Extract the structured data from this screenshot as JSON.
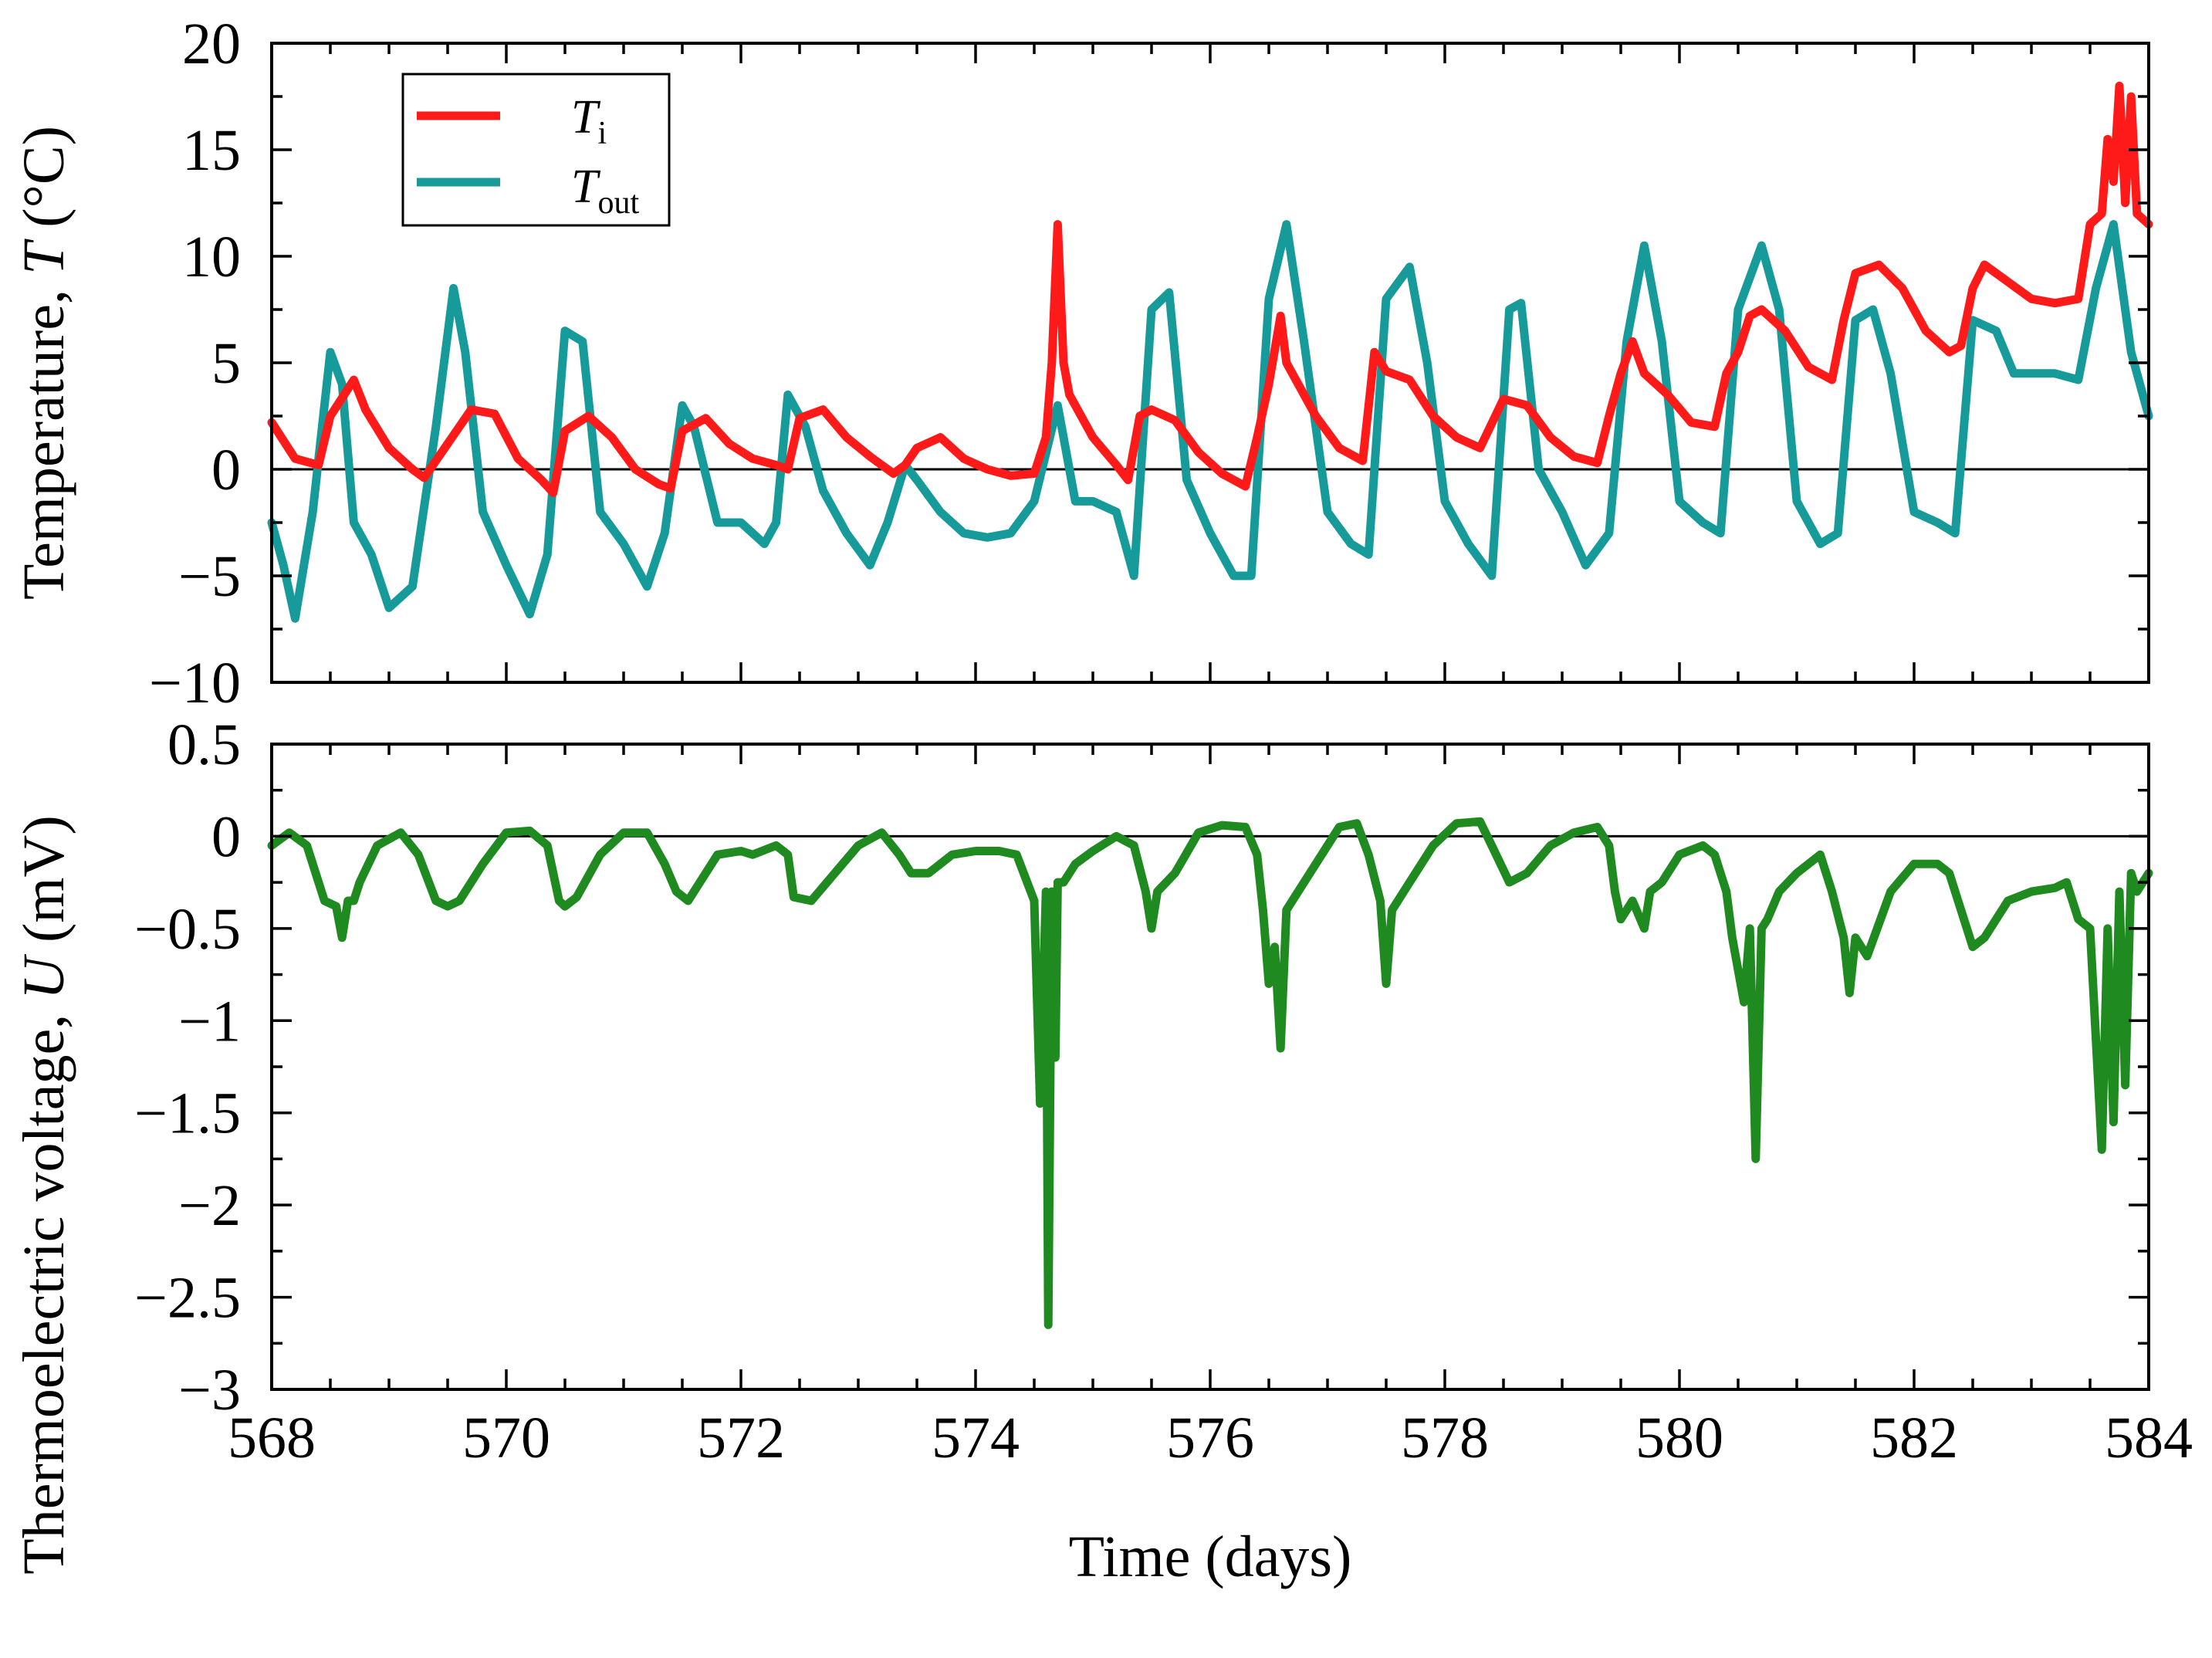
{
  "colors": {
    "ti": "#ff1a1a",
    "tout": "#179a9a",
    "u": "#1f8a1f",
    "axis": "#000000"
  },
  "chart_data": [
    {
      "id": "temperature",
      "type": "line",
      "ylabel_prefix": "Temperature, ",
      "ylabel_var": "T",
      "ylabel_suffix": " (°C)",
      "xlim": [
        568,
        584
      ],
      "ylim": [
        -10,
        20
      ],
      "yticks": [
        -10,
        -5,
        0,
        5,
        10,
        15,
        20
      ],
      "ytick_labels": [
        "−10",
        "−5",
        "0",
        "5",
        "10",
        "15",
        "20"
      ],
      "zero_line": true,
      "legend": {
        "position": "top-left",
        "entries": [
          {
            "symbol": "T",
            "subscript": "i"
          },
          {
            "symbol": "T",
            "subscript": "out"
          }
        ]
      },
      "series": [
        {
          "name": "Ti",
          "color_key": "ti",
          "x": [
            568.0,
            568.2,
            568.4,
            568.5,
            568.7,
            568.8,
            569.0,
            569.2,
            569.3,
            569.5,
            569.7,
            569.9,
            570.1,
            570.3,
            570.4,
            570.5,
            570.7,
            570.9,
            571.1,
            571.3,
            571.4,
            571.5,
            571.7,
            571.9,
            572.1,
            572.3,
            572.4,
            572.5,
            572.7,
            572.9,
            573.1,
            573.3,
            573.4,
            573.5,
            573.7,
            573.9,
            574.1,
            574.3,
            574.5,
            574.6,
            574.65,
            574.7,
            574.75,
            574.8,
            575.0,
            575.2,
            575.3,
            575.4,
            575.5,
            575.7,
            575.9,
            576.1,
            576.3,
            576.4,
            576.5,
            576.6,
            576.65,
            576.7,
            576.9,
            577.1,
            577.3,
            577.4,
            577.5,
            577.7,
            577.9,
            578.1,
            578.3,
            578.5,
            578.7,
            578.9,
            579.1,
            579.3,
            579.4,
            579.5,
            579.6,
            579.7,
            579.9,
            580.1,
            580.3,
            580.4,
            580.5,
            580.6,
            580.7,
            580.9,
            581.1,
            581.3,
            581.4,
            581.5,
            581.7,
            581.9,
            582.1,
            582.3,
            582.4,
            582.5,
            582.6,
            582.8,
            583.0,
            583.2,
            583.4,
            583.5,
            583.6,
            583.65,
            583.7,
            583.75,
            583.8,
            583.85,
            583.9,
            584.0
          ],
          "y": [
            2.2,
            0.5,
            0.2,
            2.5,
            4.2,
            2.8,
            1.0,
            0.0,
            -0.4,
            1.2,
            2.8,
            2.6,
            0.5,
            -0.5,
            -1.1,
            1.8,
            2.5,
            1.5,
            0.0,
            -0.7,
            -0.9,
            1.8,
            2.4,
            1.2,
            0.5,
            0.2,
            0.0,
            2.4,
            2.8,
            1.5,
            0.6,
            -0.2,
            0.2,
            1.0,
            1.5,
            0.5,
            0.0,
            -0.3,
            -0.2,
            1.5,
            5.0,
            11.5,
            5.0,
            3.5,
            1.5,
            0.2,
            -0.5,
            2.5,
            2.8,
            2.3,
            0.8,
            -0.2,
            -0.8,
            1.5,
            4.0,
            7.2,
            5.0,
            4.5,
            2.5,
            1.0,
            0.4,
            5.5,
            4.6,
            4.2,
            2.5,
            1.5,
            1.0,
            3.3,
            3.0,
            1.5,
            0.6,
            0.3,
            2.5,
            4.5,
            6.0,
            4.5,
            3.5,
            2.2,
            2.0,
            4.5,
            5.5,
            7.2,
            7.5,
            6.5,
            4.8,
            4.2,
            7.0,
            9.2,
            9.6,
            8.5,
            6.5,
            5.5,
            5.8,
            8.5,
            9.6,
            8.8,
            8.0,
            7.8,
            8.0,
            11.5,
            12.0,
            15.5,
            13.5,
            18.0,
            12.5,
            17.5,
            12.0,
            11.5
          ]
        },
        {
          "name": "Tout",
          "color_key": "tout",
          "x": [
            568.0,
            568.1,
            568.2,
            568.35,
            568.5,
            568.6,
            568.7,
            568.85,
            569.0,
            569.2,
            569.4,
            569.55,
            569.65,
            569.8,
            570.0,
            570.2,
            570.35,
            570.5,
            570.65,
            570.8,
            571.0,
            571.2,
            571.35,
            571.5,
            571.6,
            571.8,
            572.0,
            572.2,
            572.3,
            572.4,
            572.55,
            572.7,
            572.9,
            573.1,
            573.25,
            573.4,
            573.5,
            573.7,
            573.9,
            574.1,
            574.3,
            574.5,
            574.7,
            574.85,
            575.0,
            575.2,
            575.35,
            575.5,
            575.65,
            575.8,
            576.0,
            576.2,
            576.35,
            576.5,
            576.65,
            576.8,
            577.0,
            577.2,
            577.35,
            577.5,
            577.7,
            577.85,
            578.0,
            578.2,
            578.4,
            578.55,
            578.65,
            578.8,
            579.0,
            579.2,
            579.4,
            579.55,
            579.7,
            579.85,
            580.0,
            580.2,
            580.35,
            580.5,
            580.7,
            580.85,
            581.0,
            581.2,
            581.35,
            581.5,
            581.65,
            581.8,
            582.0,
            582.2,
            582.35,
            582.5,
            582.7,
            582.85,
            583.0,
            583.2,
            583.4,
            583.55,
            583.7,
            583.85,
            584.0
          ],
          "y": [
            -2.5,
            -4.5,
            -7.0,
            -2.0,
            5.5,
            4.0,
            -2.5,
            -4.0,
            -6.5,
            -5.5,
            2.0,
            8.5,
            5.5,
            -2.0,
            -4.5,
            -6.8,
            -4.0,
            6.5,
            6.0,
            -2.0,
            -3.5,
            -5.5,
            -3.0,
            3.0,
            2.0,
            -2.5,
            -2.5,
            -3.5,
            -2.5,
            3.5,
            2.0,
            -1.0,
            -3.0,
            -4.5,
            -2.5,
            0.2,
            -0.5,
            -2.0,
            -3.0,
            -3.2,
            -3.0,
            -1.5,
            3.0,
            -1.5,
            -1.5,
            -2.0,
            -5.0,
            7.5,
            8.3,
            -0.5,
            -3.0,
            -5.0,
            -5.0,
            8.0,
            11.5,
            6.0,
            -2.0,
            -3.5,
            -4.0,
            8.0,
            9.5,
            5.0,
            -1.5,
            -3.5,
            -5.0,
            7.5,
            7.8,
            0.0,
            -2.0,
            -4.5,
            -3.0,
            6.0,
            10.5,
            6.0,
            -1.5,
            -2.5,
            -3.0,
            7.5,
            10.5,
            7.5,
            -1.5,
            -3.5,
            -3.0,
            7.0,
            7.5,
            4.5,
            -2.0,
            -2.5,
            -3.0,
            7.0,
            6.5,
            4.5,
            4.5,
            4.5,
            4.2,
            8.5,
            11.5,
            5.5,
            2.5
          ]
        }
      ]
    },
    {
      "id": "voltage",
      "type": "line",
      "ylabel_prefix": "Thermoelectric voltage, ",
      "ylabel_var": "U",
      "ylabel_suffix": " (mV)",
      "xlabel": "Time (days)",
      "xlim": [
        568,
        584
      ],
      "ylim": [
        -3,
        0.5
      ],
      "xticks": [
        568,
        570,
        572,
        574,
        576,
        578,
        580,
        582,
        584
      ],
      "xtick_labels": [
        "568",
        "570",
        "572",
        "574",
        "576",
        "578",
        "580",
        "582",
        "584"
      ],
      "yticks": [
        -3,
        -2.5,
        -2,
        -1.5,
        -1,
        -0.5,
        0,
        0.5
      ],
      "ytick_labels": [
        "−3",
        "−2.5",
        "−2",
        "−1.5",
        "−1",
        "−0.5",
        "0",
        "0.5"
      ],
      "zero_line": true,
      "series": [
        {
          "name": "U",
          "color_key": "u",
          "x": [
            568.0,
            568.15,
            568.3,
            568.45,
            568.55,
            568.6,
            568.65,
            568.7,
            568.75,
            568.9,
            569.1,
            569.25,
            569.4,
            569.5,
            569.6,
            569.8,
            570.0,
            570.2,
            570.35,
            570.45,
            570.5,
            570.6,
            570.8,
            571.0,
            571.2,
            571.35,
            571.45,
            571.55,
            571.8,
            572.0,
            572.1,
            572.3,
            572.4,
            572.45,
            572.6,
            572.8,
            573.0,
            573.2,
            573.35,
            573.45,
            573.6,
            573.8,
            574.0,
            574.2,
            574.35,
            574.5,
            574.55,
            574.6,
            574.62,
            574.65,
            574.68,
            574.7,
            574.75,
            574.85,
            575.0,
            575.2,
            575.35,
            575.45,
            575.5,
            575.55,
            575.7,
            575.9,
            576.1,
            576.3,
            576.4,
            576.45,
            576.5,
            576.55,
            576.6,
            576.65,
            576.7,
            576.9,
            577.1,
            577.25,
            577.35,
            577.45,
            577.5,
            577.55,
            577.7,
            577.9,
            578.1,
            578.3,
            578.4,
            578.55,
            578.7,
            578.9,
            579.1,
            579.3,
            579.4,
            579.45,
            579.5,
            579.6,
            579.7,
            579.75,
            579.85,
            580.0,
            580.2,
            580.3,
            580.4,
            580.45,
            580.55,
            580.6,
            580.65,
            580.7,
            580.75,
            580.85,
            581.0,
            581.2,
            581.3,
            581.4,
            581.45,
            581.5,
            581.6,
            581.8,
            582.0,
            582.2,
            582.3,
            582.4,
            582.5,
            582.6,
            582.8,
            583.0,
            583.2,
            583.3,
            583.4,
            583.5,
            583.6,
            583.65,
            583.7,
            583.75,
            583.8,
            583.85,
            583.9,
            584.0
          ],
          "y": [
            -0.05,
            0.02,
            -0.05,
            -0.35,
            -0.38,
            -0.55,
            -0.35,
            -0.35,
            -0.25,
            -0.05,
            0.02,
            -0.1,
            -0.35,
            -0.38,
            -0.35,
            -0.15,
            0.02,
            0.03,
            -0.05,
            -0.35,
            -0.38,
            -0.33,
            -0.1,
            0.02,
            0.02,
            -0.15,
            -0.3,
            -0.35,
            -0.1,
            -0.08,
            -0.1,
            -0.05,
            -0.1,
            -0.33,
            -0.35,
            -0.2,
            -0.05,
            0.02,
            -0.1,
            -0.2,
            -0.2,
            -0.1,
            -0.08,
            -0.08,
            -0.1,
            -0.35,
            -1.45,
            -0.3,
            -2.65,
            -0.3,
            -1.2,
            -0.25,
            -0.25,
            -0.15,
            -0.08,
            0.0,
            -0.05,
            -0.3,
            -0.5,
            -0.3,
            -0.2,
            0.02,
            0.06,
            0.05,
            -0.1,
            -0.4,
            -0.8,
            -0.6,
            -1.15,
            -0.4,
            -0.35,
            -0.15,
            0.05,
            0.07,
            -0.1,
            -0.35,
            -0.8,
            -0.4,
            -0.25,
            -0.05,
            0.07,
            0.08,
            -0.05,
            -0.25,
            -0.2,
            -0.05,
            0.02,
            0.05,
            -0.05,
            -0.3,
            -0.45,
            -0.35,
            -0.5,
            -0.3,
            -0.25,
            -0.1,
            -0.05,
            -0.1,
            -0.3,
            -0.55,
            -0.9,
            -0.5,
            -1.75,
            -0.5,
            -0.45,
            -0.3,
            -0.2,
            -0.1,
            -0.3,
            -0.55,
            -0.85,
            -0.55,
            -0.65,
            -0.3,
            -0.15,
            -0.15,
            -0.2,
            -0.4,
            -0.6,
            -0.55,
            -0.35,
            -0.3,
            -0.28,
            -0.25,
            -0.45,
            -0.5,
            -1.7,
            -0.5,
            -1.55,
            -0.3,
            -1.35,
            -0.2,
            -0.3,
            -0.2
          ]
        }
      ]
    }
  ]
}
